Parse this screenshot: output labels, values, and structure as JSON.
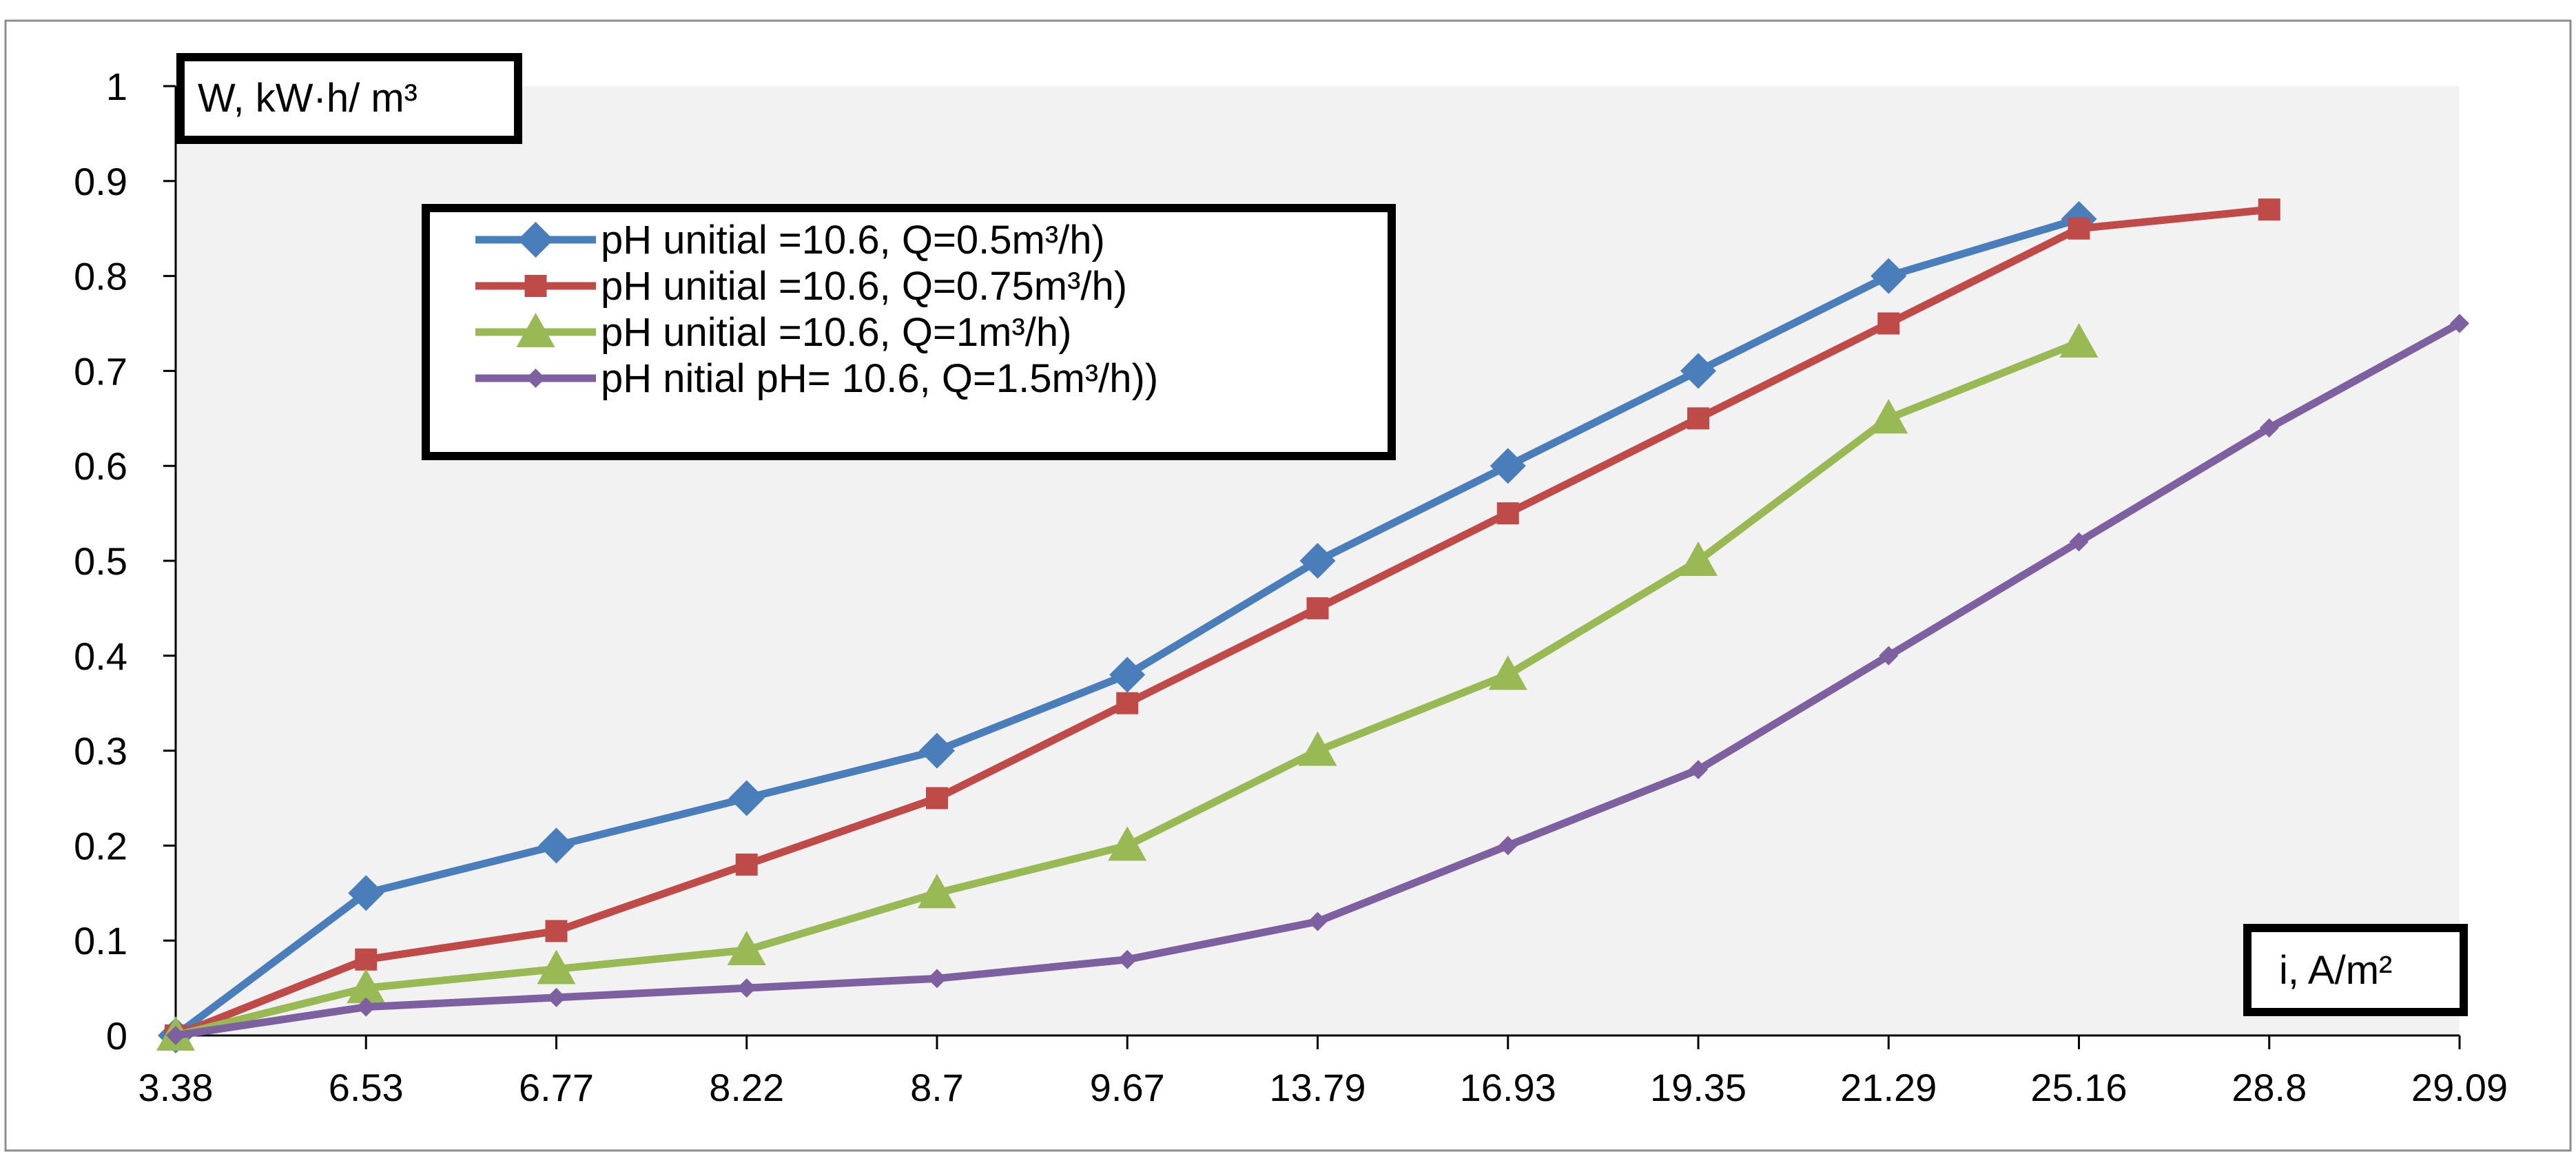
{
  "chart_data": {
    "type": "line",
    "title": "",
    "ylabel": "W, kW·h/ m³",
    "xlabel": "i, A/m²",
    "categories": [
      "3.38",
      "6.53",
      "6.77",
      "8.22",
      "8.7",
      "9.67",
      "13.79",
      "16.93",
      "19.35",
      "21.29",
      "25.16",
      "28.8",
      "29.09"
    ],
    "ylim": [
      0,
      1
    ],
    "yticks": [
      "0",
      "0.1",
      "0.2",
      "0.3",
      "0.4",
      "0.5",
      "0.6",
      "0.7",
      "0.8",
      "0.9",
      "1"
    ],
    "grid": false,
    "legend_position": "top-left",
    "series": [
      {
        "name": "pH unitial =10.6, Q=0.5m³/h)",
        "color": "#4a7ebb",
        "marker": "diamond",
        "values": [
          0,
          0.15,
          0.2,
          0.25,
          0.3,
          0.38,
          0.5,
          0.6,
          0.7,
          0.8,
          0.86,
          null,
          null
        ]
      },
      {
        "name": "pH unitial =10.6, Q=0.75m³/h)",
        "color": "#be4b48",
        "marker": "square",
        "values": [
          0,
          0.08,
          0.11,
          0.18,
          0.25,
          0.35,
          0.45,
          0.55,
          0.65,
          0.75,
          0.85,
          0.87,
          null
        ]
      },
      {
        "name": "pH unitial =10.6, Q=1m³/h)",
        "color": "#98b954",
        "marker": "triangle",
        "values": [
          0,
          0.05,
          0.07,
          0.09,
          0.15,
          0.2,
          0.3,
          0.38,
          0.5,
          0.65,
          0.73,
          null,
          null
        ]
      },
      {
        "name": "pH nitial pH= 10.6, Q=1.5m³/h))",
        "color": "#7d60a0",
        "marker": "diamond",
        "values": [
          0,
          0.03,
          0.04,
          0.05,
          0.06,
          0.08,
          0.12,
          0.2,
          0.28,
          0.4,
          0.52,
          0.64,
          0.75
        ]
      }
    ]
  }
}
